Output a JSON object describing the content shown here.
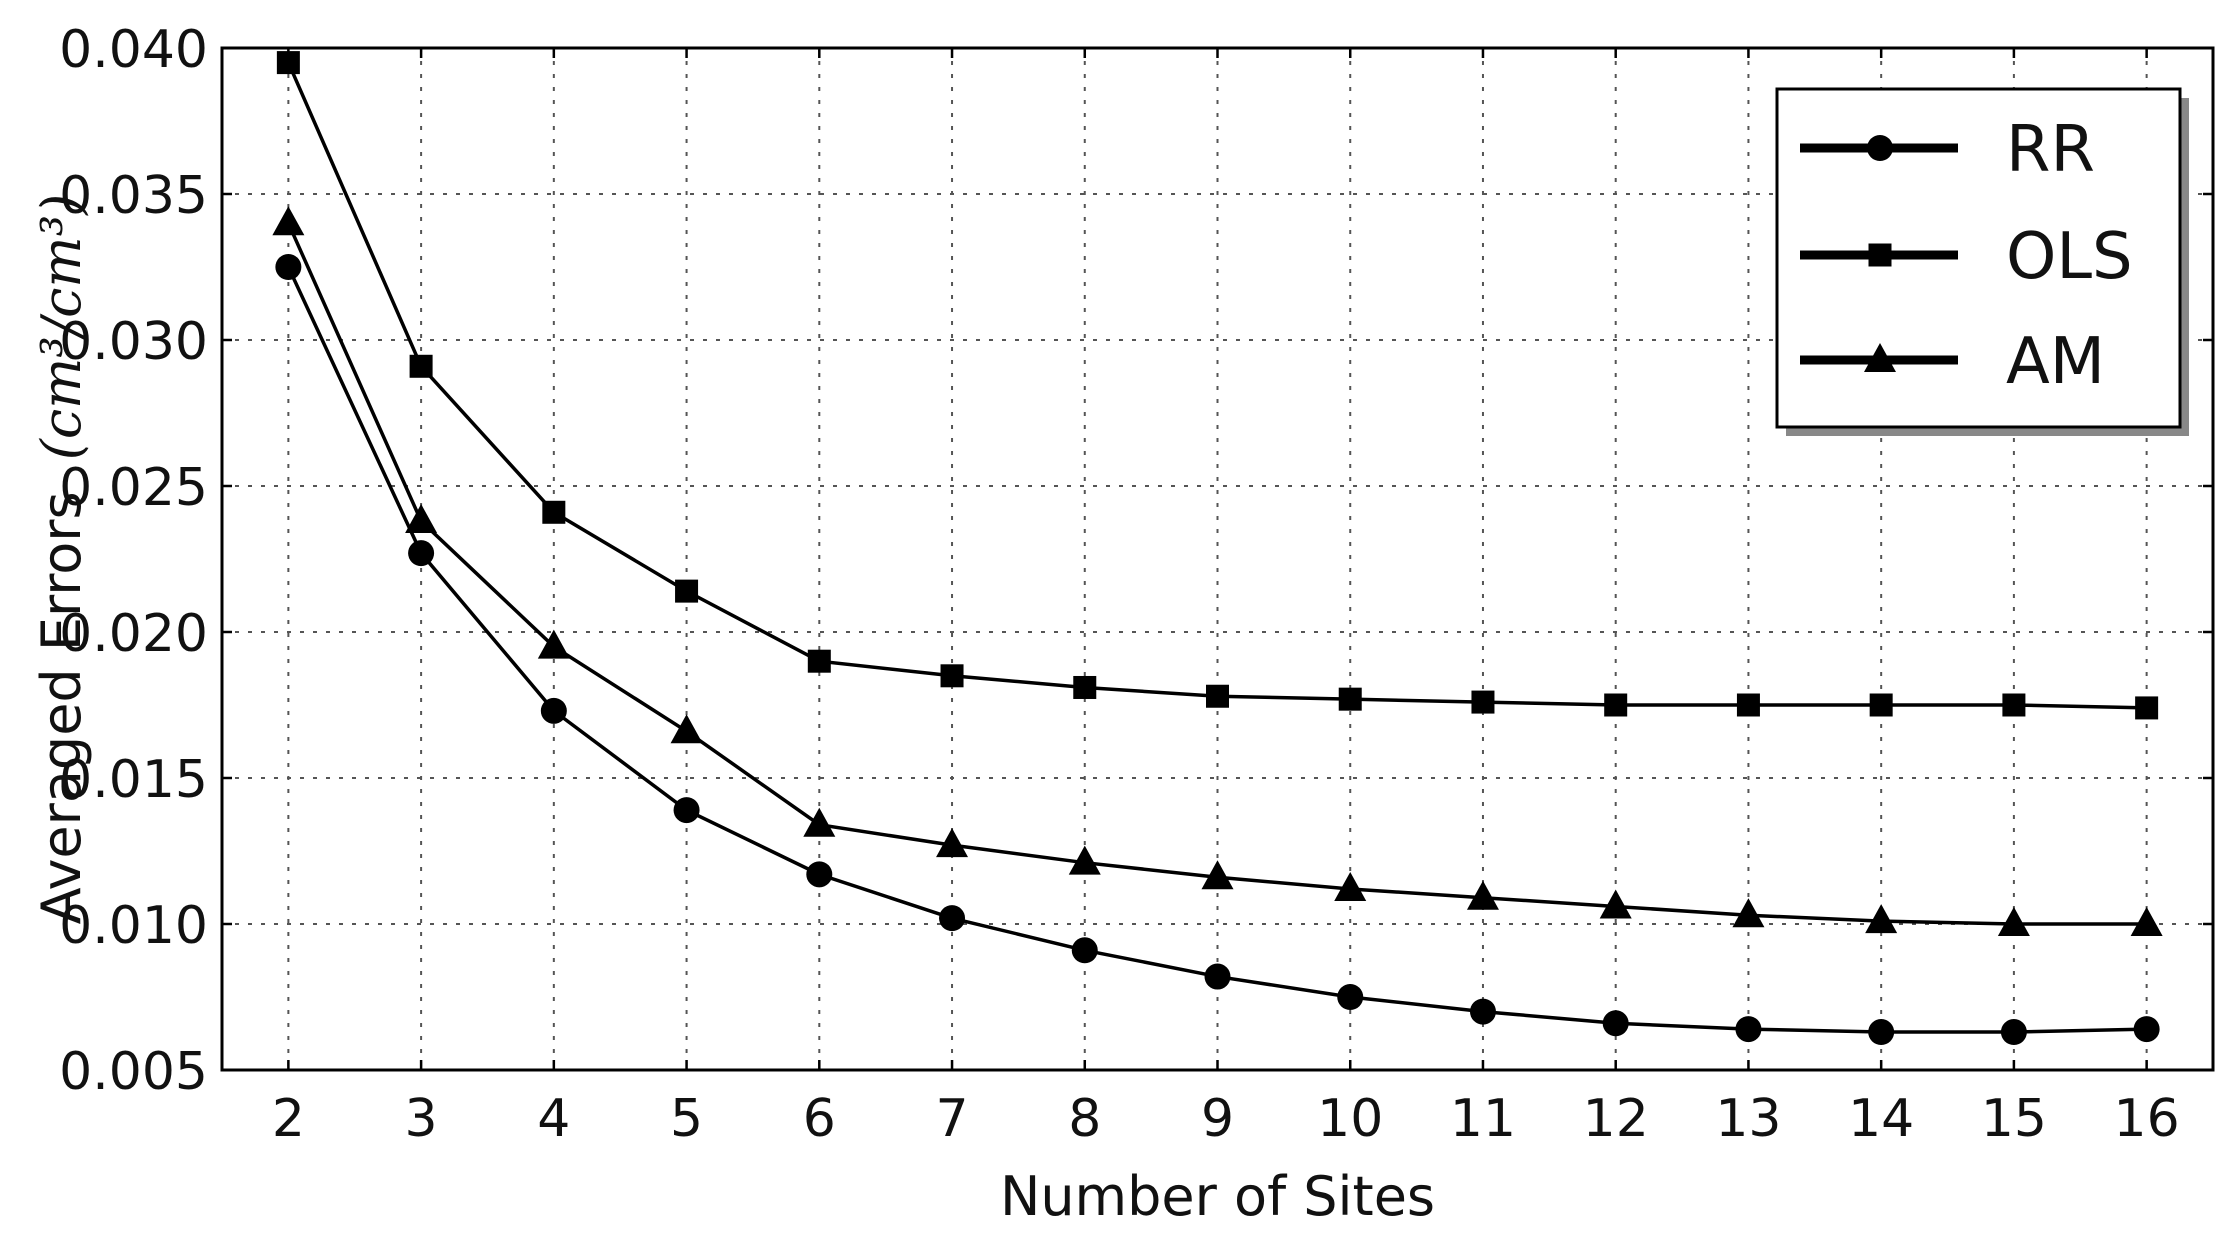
{
  "chart_data": {
    "type": "line",
    "xlabel": "Number of Sites",
    "ylabel": "Averaged Errors",
    "ylabel_unit": "(cm³/cm³)",
    "x": [
      2,
      3,
      4,
      5,
      6,
      7,
      8,
      9,
      10,
      11,
      12,
      13,
      14,
      15,
      16
    ],
    "xlim": [
      1.5,
      16.5
    ],
    "ylim": [
      0.005,
      0.04
    ],
    "y_ticks": [
      "0.005",
      "0.010",
      "0.015",
      "0.020",
      "0.025",
      "0.030",
      "0.035",
      "0.040"
    ],
    "x_ticks": [
      "2",
      "3",
      "4",
      "5",
      "6",
      "7",
      "8",
      "9",
      "10",
      "11",
      "12",
      "13",
      "14",
      "15",
      "16"
    ],
    "grid": true,
    "legend_position": "top-right",
    "series": [
      {
        "name": "RR",
        "marker": "circle",
        "values": [
          0.0325,
          0.0227,
          0.0173,
          0.0139,
          0.0117,
          0.0102,
          0.0091,
          0.0082,
          0.0075,
          0.007,
          0.0066,
          0.0064,
          0.0063,
          0.0063,
          0.0064
        ]
      },
      {
        "name": "OLS",
        "marker": "square",
        "values": [
          0.0395,
          0.0291,
          0.0241,
          0.0214,
          0.019,
          0.0185,
          0.0181,
          0.0178,
          0.0177,
          0.0176,
          0.0175,
          0.0175,
          0.0175,
          0.0175,
          0.0174
        ]
      },
      {
        "name": "AM",
        "marker": "triangle",
        "values": [
          0.034,
          0.0238,
          0.0195,
          0.0166,
          0.0134,
          0.0127,
          0.0121,
          0.0116,
          0.0112,
          0.0109,
          0.0106,
          0.0103,
          0.0101,
          0.01,
          0.01
        ]
      }
    ]
  }
}
